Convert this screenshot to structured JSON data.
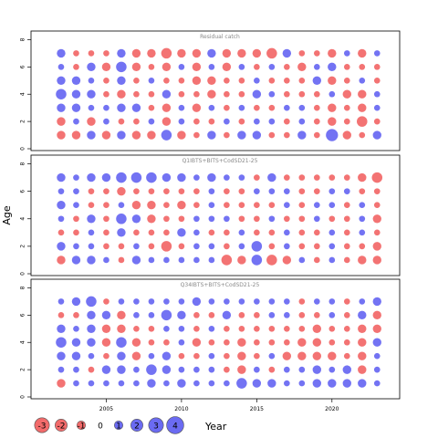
{
  "chart_data": {
    "type": "bubble",
    "ylabel": "Age",
    "legend_label": "Year",
    "x_ticks": [
      "2005",
      "2010",
      "2015",
      "2020"
    ],
    "y_ticks": [
      "0",
      "2",
      "4",
      "6",
      "8"
    ],
    "xlim": [
      2000,
      2024.5
    ],
    "ylim": [
      0,
      8.5
    ],
    "years": [
      2002,
      2003,
      2004,
      2005,
      2006,
      2007,
      2008,
      2009,
      2010,
      2011,
      2012,
      2013,
      2014,
      2015,
      2016,
      2017,
      2018,
      2019,
      2020,
      2021,
      2022,
      2023
    ],
    "ages": [
      1,
      2,
      3,
      4,
      5,
      6,
      7
    ],
    "legend": {
      "values": [
        -3,
        -2,
        -1,
        0,
        1,
        2,
        3,
        4
      ],
      "labels": [
        "-3",
        "-2",
        "-1",
        "0",
        "1",
        "2",
        "3",
        "4"
      ]
    },
    "colors": {
      "negative": "#f26b6b",
      "positive": "#6b6bf2",
      "border": "#555555"
    },
    "panels": [
      {
        "title": "Residual catch",
        "residuals": [
          [
            -1.0,
            -1.0,
            1.0,
            -1.0,
            1.0,
            -1.0,
            -1.0,
            1.5,
            -1.0,
            -0.5,
            1.0,
            -0.5,
            1.0,
            1.0,
            -0.5,
            -0.5,
            1.0,
            -0.5,
            2.0,
            -1.0,
            -0.5,
            1.0
          ],
          [
            -1.0,
            0.5,
            -1.0,
            0.5,
            -0.5,
            -0.5,
            0.5,
            -1.0,
            0.5,
            -0.5,
            -0.5,
            0.5,
            -0.5,
            0.5,
            0.5,
            -0.5,
            0.5,
            -0.5,
            -1.0,
            -0.5,
            -1.5,
            -0.5
          ],
          [
            1.0,
            1.0,
            0.5,
            0.5,
            1.0,
            1.0,
            -0.5,
            -1.0,
            0.5,
            -1.0,
            0.5,
            -0.5,
            0.5,
            -0.5,
            -0.5,
            0.5,
            0.5,
            -0.5,
            -1.0,
            -0.5,
            -1.0,
            0.5
          ],
          [
            1.5,
            1.0,
            1.0,
            -0.5,
            -1.0,
            -0.5,
            -0.5,
            1.0,
            -0.5,
            -0.5,
            -1.0,
            -0.5,
            -0.5,
            1.0,
            0.5,
            -0.5,
            -0.5,
            -0.5,
            0.5,
            -1.0,
            -1.0,
            0.5
          ],
          [
            1.0,
            1.0,
            0.5,
            -0.5,
            1.0,
            -0.5,
            0.5,
            -0.5,
            -0.5,
            -1.0,
            -1.0,
            -0.5,
            -0.5,
            0.5,
            -0.5,
            -0.5,
            -0.5,
            1.0,
            -1.0,
            -0.5,
            0.5,
            -0.5
          ],
          [
            0.5,
            -0.5,
            1.0,
            -1.0,
            1.5,
            -1.0,
            -0.5,
            -1.0,
            0.5,
            -1.0,
            0.5,
            -1.0,
            0.5,
            -0.5,
            0.5,
            -0.5,
            -1.0,
            0.5,
            1.0,
            -0.5,
            -0.5,
            -0.5
          ],
          [
            1.0,
            -0.5,
            -0.5,
            -0.5,
            1.0,
            -1.0,
            -1.0,
            -1.5,
            -1.0,
            -1.0,
            1.0,
            -1.0,
            -1.0,
            -1.0,
            -1.5,
            1.0,
            -0.5,
            -0.5,
            -1.0,
            0.5,
            -1.0,
            0.5
          ]
        ]
      },
      {
        "title": "Q1IBTS+BITS+CodSD21-25",
        "residuals": [
          [
            -1.0,
            1.0,
            1.0,
            0.5,
            -0.5,
            1.0,
            0.5,
            0.5,
            0.5,
            0.5,
            0.5,
            -1.5,
            -1.0,
            1.5,
            -1.5,
            -1.0,
            0.5,
            -0.5,
            0.5,
            -0.5,
            -1.0,
            -1.0
          ],
          [
            1.0,
            0.5,
            0.5,
            -0.5,
            -0.5,
            0.5,
            -0.5,
            -1.5,
            -0.5,
            0.5,
            0.5,
            -0.5,
            0.5,
            1.5,
            -0.5,
            0.5,
            -0.5,
            -0.5,
            0.5,
            -0.5,
            -0.5,
            -1.0
          ],
          [
            -0.5,
            -0.5,
            0.5,
            -0.5,
            1.0,
            -0.5,
            -0.5,
            -0.5,
            1.0,
            0.5,
            -0.5,
            -0.5,
            0.5,
            -0.5,
            -0.5,
            0.5,
            -0.5,
            -0.5,
            0.5,
            -0.5,
            0.5,
            -0.5
          ],
          [
            0.5,
            -0.5,
            1.0,
            -0.5,
            1.5,
            1.0,
            -1.0,
            -0.5,
            -0.5,
            0.5,
            0.5,
            0.5,
            -0.5,
            -0.5,
            0.5,
            -0.5,
            -0.5,
            0.5,
            -0.5,
            -0.5,
            0.5,
            -1.0
          ],
          [
            1.0,
            0.5,
            -0.5,
            -0.5,
            0.5,
            -1.0,
            -1.0,
            -0.5,
            -1.0,
            -0.5,
            0.5,
            -0.5,
            -0.5,
            -0.5,
            -0.5,
            0.5,
            -0.5,
            0.5,
            0.5,
            -0.5,
            0.5,
            -0.5
          ],
          [
            0.5,
            0.5,
            -0.5,
            -0.5,
            -1.0,
            -0.5,
            -0.5,
            -0.5,
            -0.5,
            -0.5,
            0.5,
            -0.5,
            -0.5,
            0.5,
            0.5,
            0.5,
            -0.5,
            -0.5,
            0.5,
            0.5,
            -0.5,
            -0.5
          ],
          [
            1.0,
            0.5,
            1.0,
            1.0,
            1.5,
            1.5,
            1.5,
            1.0,
            1.0,
            0.5,
            1.0,
            0.5,
            0.5,
            -0.5,
            1.0,
            -0.5,
            -0.5,
            -0.5,
            -0.5,
            -0.5,
            -1.0,
            -1.5
          ]
        ]
      },
      {
        "title": "Q34IBTS+BITS+CodSD21-25",
        "residuals": [
          [
            -1.0,
            0.5,
            0.5,
            0.5,
            0.5,
            0.5,
            1.0,
            0.5,
            1.0,
            0.5,
            0.5,
            0.5,
            1.5,
            1.0,
            1.0,
            0.5,
            0.5,
            1.0,
            1.0,
            1.0,
            1.0,
            0.5
          ],
          [
            0.5,
            0.5,
            -0.5,
            1.0,
            1.0,
            0.5,
            1.5,
            1.0,
            0.5,
            0.5,
            0.5,
            -0.5,
            -1.0,
            0.5,
            -0.5,
            0.5,
            0.5,
            1.0,
            0.5,
            1.0,
            -1.0,
            0.5
          ],
          [
            1.0,
            1.0,
            0.5,
            -0.5,
            1.0,
            -1.0,
            0.5,
            1.0,
            -0.5,
            -0.5,
            0.5,
            -0.5,
            -1.0,
            -0.5,
            0.5,
            -1.0,
            -1.0,
            -1.0,
            -1.0,
            -0.5,
            -1.0,
            0.5
          ],
          [
            1.5,
            1.0,
            1.0,
            -1.0,
            1.5,
            -1.0,
            -0.5,
            -0.5,
            0.5,
            -1.0,
            -0.5,
            -0.5,
            -1.0,
            -0.5,
            -0.5,
            -0.5,
            -1.0,
            -1.0,
            -0.5,
            -0.5,
            -1.0,
            1.0
          ],
          [
            1.0,
            0.5,
            1.0,
            -1.0,
            -1.0,
            -0.5,
            -0.5,
            0.5,
            0.5,
            -0.5,
            0.5,
            -0.5,
            -0.5,
            -0.5,
            -0.5,
            -0.5,
            -0.5,
            -1.0,
            -0.5,
            -0.5,
            -1.0,
            -1.0
          ],
          [
            -0.5,
            -0.5,
            1.0,
            1.0,
            -1.0,
            0.5,
            0.5,
            1.5,
            1.0,
            -0.5,
            -0.5,
            1.0,
            -0.5,
            -0.5,
            0.5,
            0.5,
            -0.5,
            -0.5,
            0.5,
            -0.5,
            1.0,
            -1.0
          ],
          [
            0.5,
            1.0,
            1.5,
            -0.5,
            0.5,
            0.5,
            0.5,
            0.5,
            0.5,
            1.0,
            0.5,
            0.5,
            0.5,
            0.5,
            0.5,
            0.5,
            -0.5,
            0.5,
            0.5,
            -0.5,
            0.5,
            1.0
          ]
        ]
      }
    ]
  }
}
